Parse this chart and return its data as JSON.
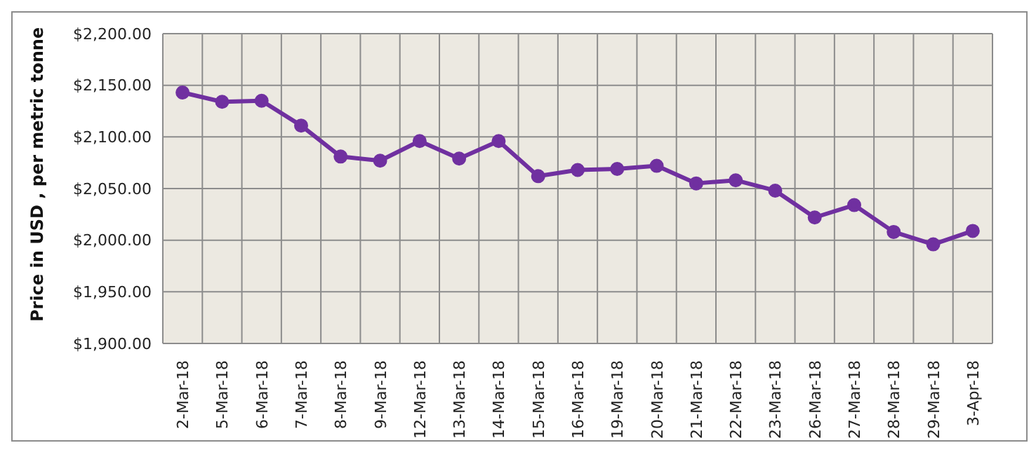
{
  "chart_data": {
    "type": "line",
    "ylabel": "Price in USD , per metric tonne",
    "categories": [
      "2-Mar-18",
      "5-Mar-18",
      "6-Mar-18",
      "7-Mar-18",
      "8-Mar-18",
      "9-Mar-18",
      "12-Mar-18",
      "13-Mar-18",
      "14-Mar-18",
      "15-Mar-18",
      "16-Mar-18",
      "19-Mar-18",
      "20-Mar-18",
      "21-Mar-18",
      "22-Mar-18",
      "23-Mar-18",
      "26-Mar-18",
      "27-Mar-18",
      "28-Mar-18",
      "29-Mar-18",
      "3-Apr-18"
    ],
    "series": [
      {
        "color": "#7030a0",
        "values": [
          2143,
          2134,
          2135,
          2111,
          2081,
          2077,
          2096,
          2079,
          2096,
          2062,
          2068,
          2069,
          2072,
          2055,
          2058,
          2048,
          2022,
          2034,
          2008,
          1996,
          2009
        ]
      }
    ],
    "ylim": [
      1900,
      2200
    ],
    "yticks": [
      {
        "value": 1900,
        "label": "$1,900.00"
      },
      {
        "value": 1950,
        "label": "$1,950.00"
      },
      {
        "value": 2000,
        "label": "$2,000.00"
      },
      {
        "value": 2050,
        "label": "$2,050.00"
      },
      {
        "value": 2100,
        "label": "$2,100.00"
      },
      {
        "value": 2150,
        "label": "$2,150.00"
      },
      {
        "value": 2200,
        "label": "$2,200.00"
      }
    ],
    "grid": true,
    "marker": "circle",
    "line_style": "solid"
  }
}
